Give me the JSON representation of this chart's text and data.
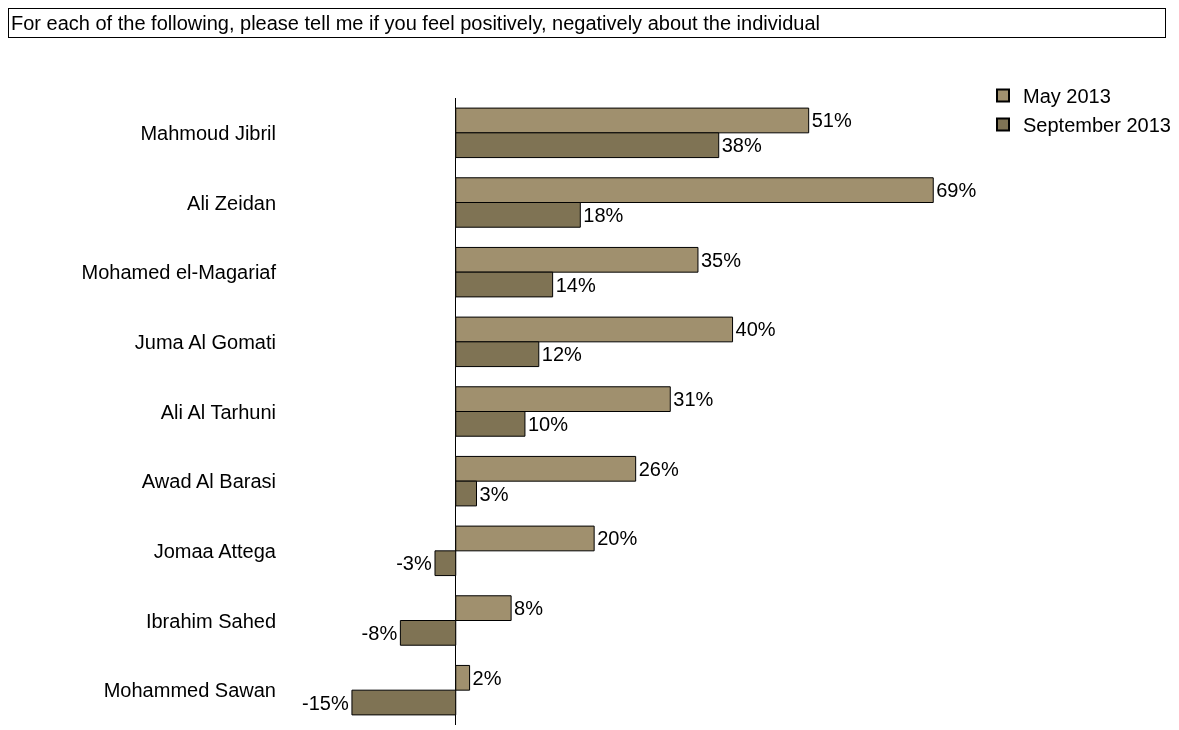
{
  "chart_data": {
    "type": "bar",
    "orientation": "horizontal",
    "title": "For each of the following, please tell me if you feel positively, negatively about the individual",
    "categories": [
      "Mahmoud Jibril",
      "Ali Zeidan",
      "Mohamed el-Magariaf",
      "Juma Al Gomati",
      "Ali Al Tarhuni",
      "Awad Al Barasi",
      "Jomaa Attega",
      "Ibrahim Sahed",
      "Mohammed Sawan"
    ],
    "series": [
      {
        "name": "May 2013",
        "color": "#a0906e",
        "values": [
          51,
          69,
          35,
          40,
          31,
          26,
          20,
          8,
          2
        ],
        "value_labels": [
          "51%",
          "69%",
          "35%",
          "40%",
          "31%",
          "26%",
          "20%",
          "8%",
          "2%"
        ]
      },
      {
        "name": "September 2013",
        "color": "#7f7354",
        "values": [
          38,
          18,
          14,
          12,
          10,
          3,
          -3,
          -8,
          -15
        ],
        "value_labels": [
          "38%",
          "18%",
          "14%",
          "12%",
          "10%",
          "3%",
          "-3%",
          "-8%",
          "-15%"
        ]
      }
    ],
    "legend": "top right",
    "tick_labels": "y"
  }
}
